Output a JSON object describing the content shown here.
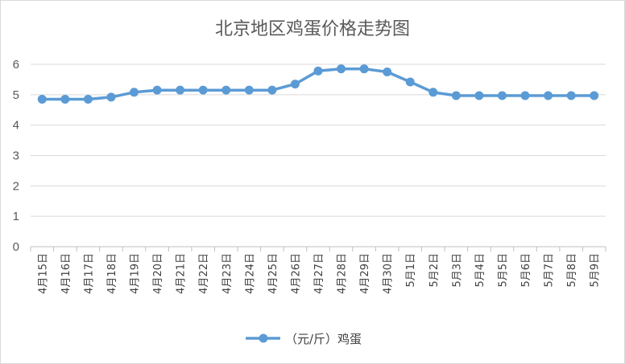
{
  "title": "北京地区鸡蛋价格走势图",
  "legend": {
    "label": "（元/斤）鸡蛋"
  },
  "colors": {
    "series": "#5b9bd5",
    "grid": "#d9d9d9",
    "axis": "#bfbfbf"
  },
  "chart_data": {
    "type": "line",
    "title": "北京地区鸡蛋价格走势图",
    "xlabel": "",
    "ylabel": "",
    "ylim": [
      0,
      6
    ],
    "yticks": [
      "0",
      "1",
      "2",
      "3",
      "4",
      "5",
      "6"
    ],
    "grid": true,
    "legend_position": "bottom",
    "categories": [
      "4月15日",
      "4月16日",
      "4月17日",
      "4月18日",
      "4月19日",
      "4月20日",
      "4月21日",
      "4月22日",
      "4月23日",
      "4月24日",
      "4月25日",
      "4月26日",
      "4月27日",
      "4月28日",
      "4月29日",
      "4月30日",
      "5月1日",
      "5月2日",
      "5月3日",
      "5月4日",
      "5月5日",
      "5月6日",
      "5月7日",
      "5月8日",
      "5月9日"
    ],
    "series": [
      {
        "name": "（元/斤）鸡蛋",
        "values": [
          4.85,
          4.85,
          4.85,
          4.92,
          5.08,
          5.15,
          5.15,
          5.15,
          5.15,
          5.15,
          5.15,
          5.35,
          5.78,
          5.85,
          5.85,
          5.75,
          5.42,
          5.08,
          4.97,
          4.97,
          4.97,
          4.97,
          4.97,
          4.97,
          4.97
        ]
      }
    ]
  }
}
